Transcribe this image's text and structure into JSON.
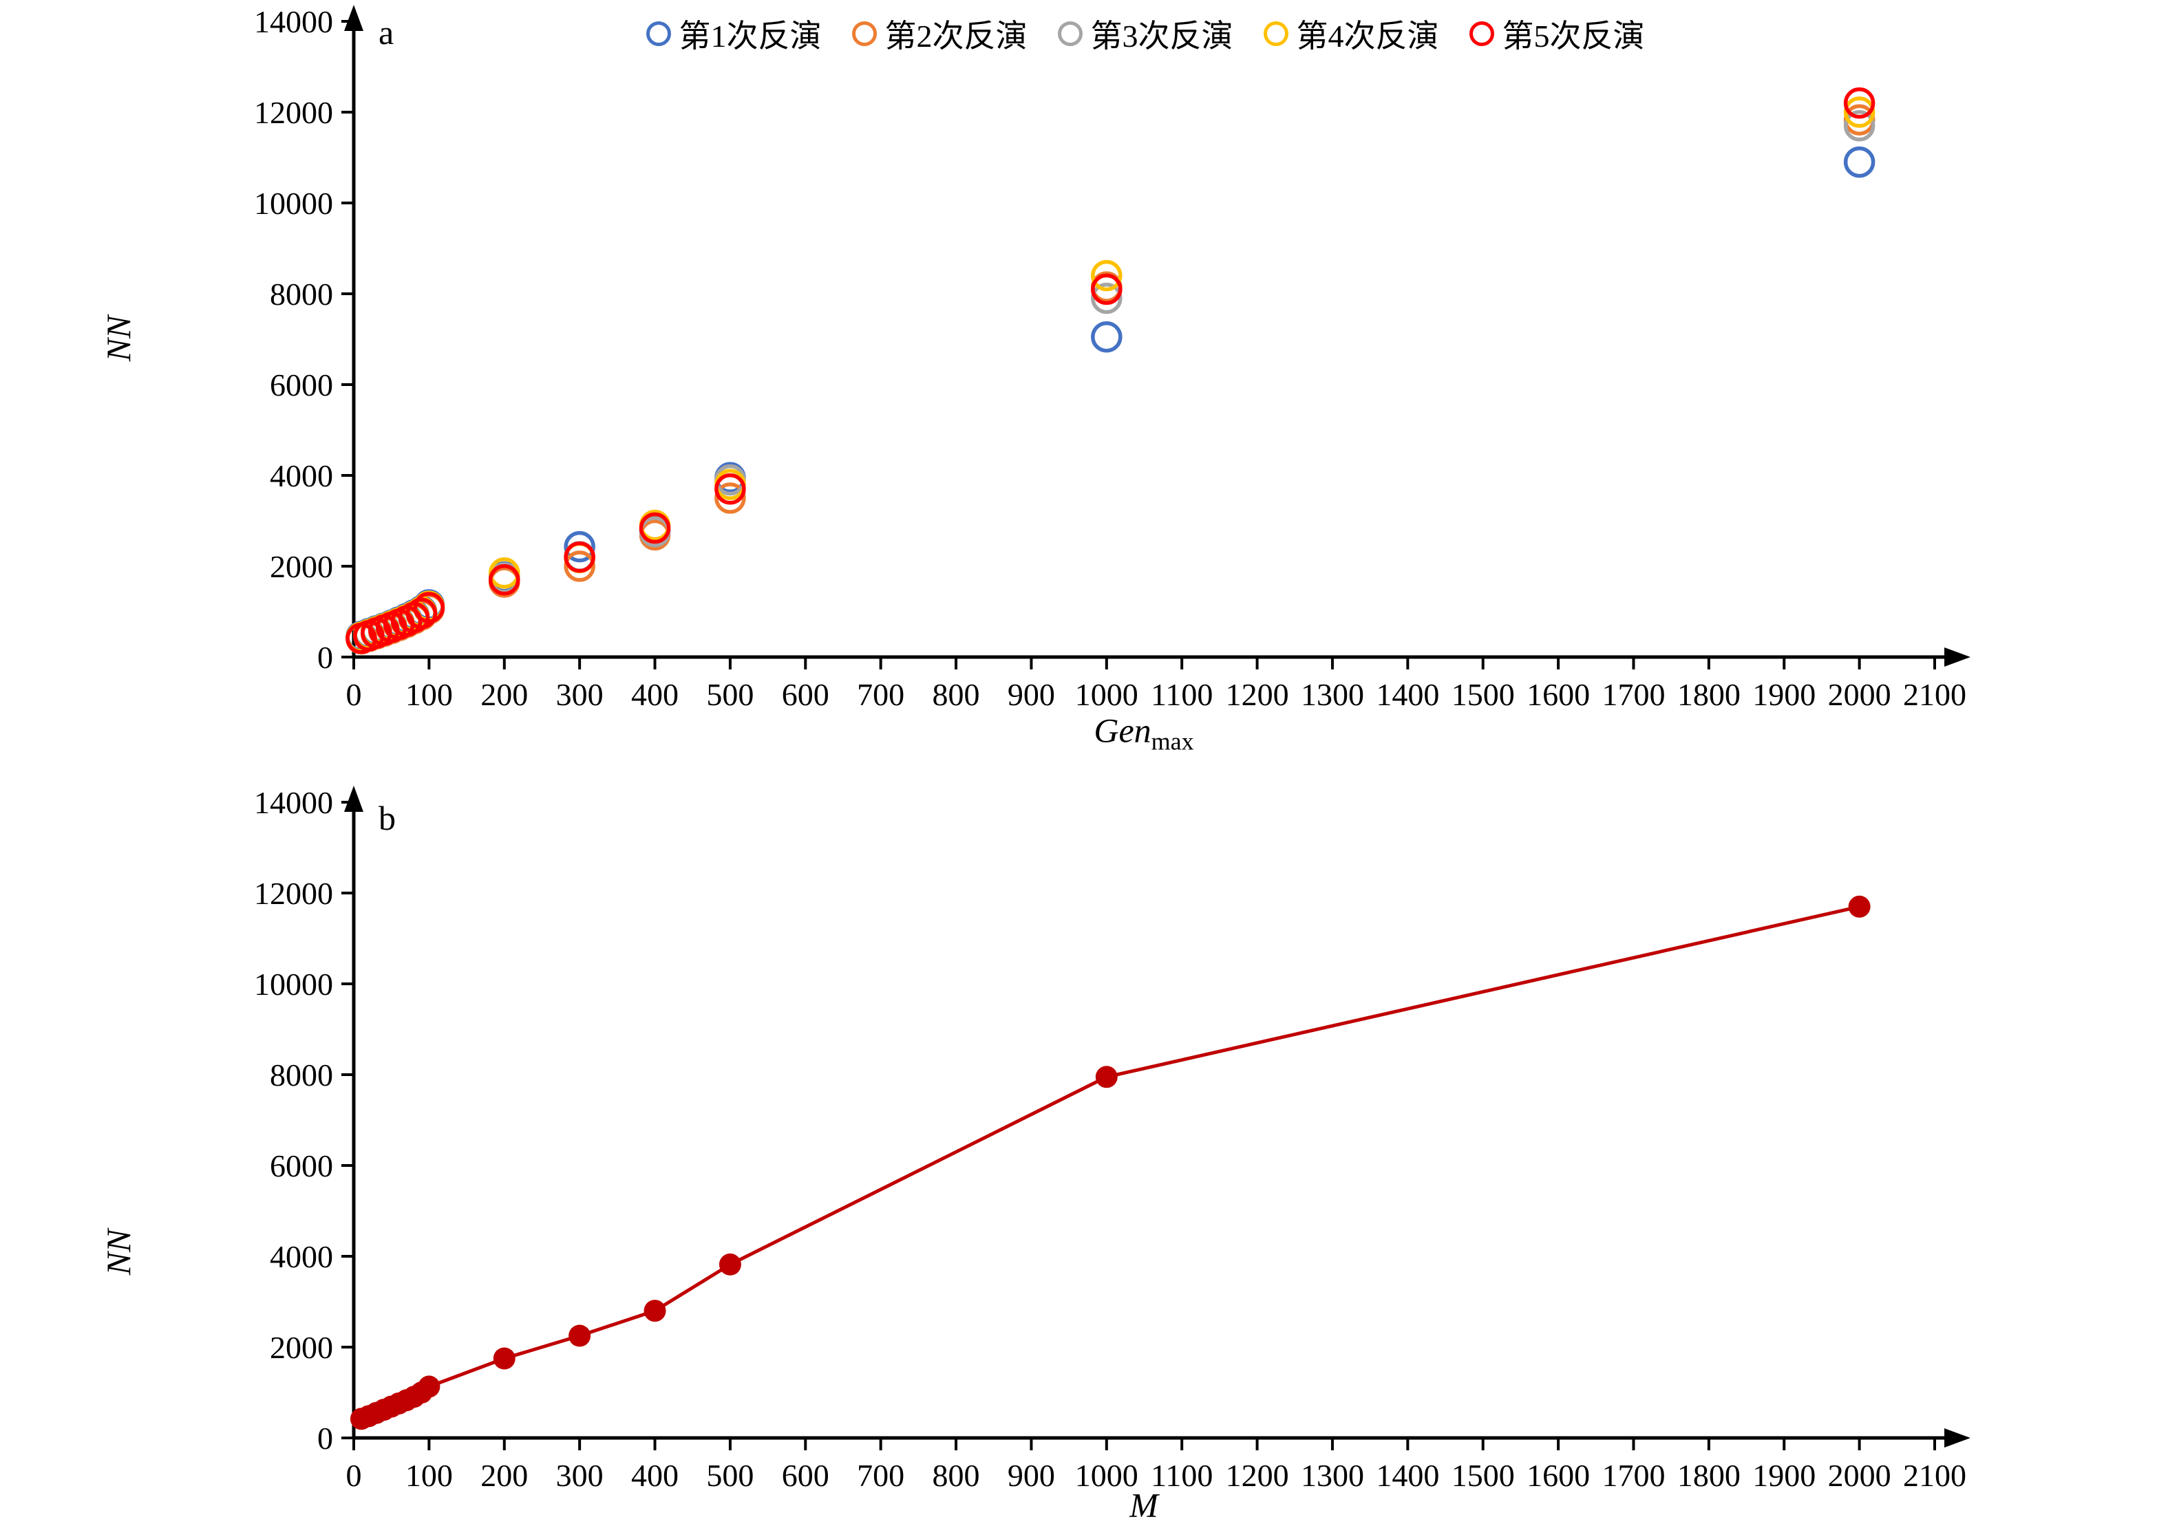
{
  "figure": {
    "background": "#ffffff",
    "text_color": "#000000"
  },
  "chart_data": [
    {
      "id": "a",
      "type": "scatter",
      "panel_label": "a",
      "xlabel": {
        "main": "Gen",
        "sub": "max"
      },
      "ylabel": "NN",
      "xlim": [
        0,
        2100
      ],
      "ylim": [
        0,
        14000
      ],
      "grid": false,
      "legend_position": "top-center",
      "marker": "open-circle",
      "x_ticks": [
        0,
        100,
        200,
        300,
        400,
        500,
        600,
        700,
        800,
        900,
        1000,
        1100,
        1200,
        1300,
        1400,
        1500,
        1600,
        1700,
        1800,
        1900,
        2000,
        2100
      ],
      "y_ticks": [
        0,
        2000,
        4000,
        6000,
        8000,
        10000,
        12000,
        14000
      ],
      "x": [
        10,
        20,
        30,
        40,
        50,
        60,
        70,
        80,
        90,
        100,
        200,
        300,
        400,
        500,
        1000,
        2000
      ],
      "series": [
        {
          "name": "第1次反演",
          "color": "#4472C4",
          "values": [
            455,
            515,
            575,
            635,
            700,
            770,
            845,
            925,
            1015,
            1150,
            1760,
            2430,
            2780,
            3950,
            7050,
            10900
          ]
        },
        {
          "name": "第2次反演",
          "color": "#ED7D31",
          "values": [
            400,
            455,
            510,
            568,
            628,
            692,
            762,
            842,
            930,
            1060,
            1650,
            2000,
            2690,
            3500,
            8150,
            11830
          ]
        },
        {
          "name": "第3次反演",
          "color": "#A5A5A5",
          "values": [
            425,
            483,
            542,
            602,
            665,
            733,
            803,
            883,
            972,
            1100,
            1740,
            2210,
            2760,
            3900,
            7900,
            11700
          ]
        },
        {
          "name": "第4次反演",
          "color": "#FFC000",
          "values": [
            435,
            495,
            555,
            618,
            683,
            748,
            818,
            898,
            992,
            1120,
            1850,
            2190,
            2900,
            3800,
            8400,
            12000
          ]
        },
        {
          "name": "第5次反演",
          "color": "#FF0000",
          "values": [
            412,
            470,
            530,
            592,
            656,
            722,
            792,
            872,
            962,
            1090,
            1700,
            2200,
            2840,
            3700,
            8100,
            12200
          ]
        }
      ]
    },
    {
      "id": "b",
      "type": "line",
      "panel_label": "b",
      "xlabel": {
        "main": "M",
        "sub": ""
      },
      "ylabel": "NN",
      "xlim": [
        0,
        2100
      ],
      "ylim": [
        0,
        14000
      ],
      "grid": false,
      "legend_position": "none",
      "marker": "filled-circle",
      "x_ticks": [
        0,
        100,
        200,
        300,
        400,
        500,
        600,
        700,
        800,
        900,
        1000,
        1100,
        1200,
        1300,
        1400,
        1500,
        1600,
        1700,
        1800,
        1900,
        2000,
        2100
      ],
      "y_ticks": [
        0,
        2000,
        4000,
        6000,
        8000,
        10000,
        12000,
        14000
      ],
      "x": [
        10,
        20,
        30,
        40,
        50,
        60,
        70,
        80,
        90,
        100,
        200,
        300,
        400,
        500,
        1000,
        2000
      ],
      "series": [
        {
          "name": "NN",
          "color": "#C00000",
          "values": [
            420,
            480,
            550,
            620,
            690,
            760,
            830,
            905,
            1000,
            1130,
            1750,
            2250,
            2800,
            3820,
            7950,
            11700
          ]
        }
      ]
    }
  ]
}
